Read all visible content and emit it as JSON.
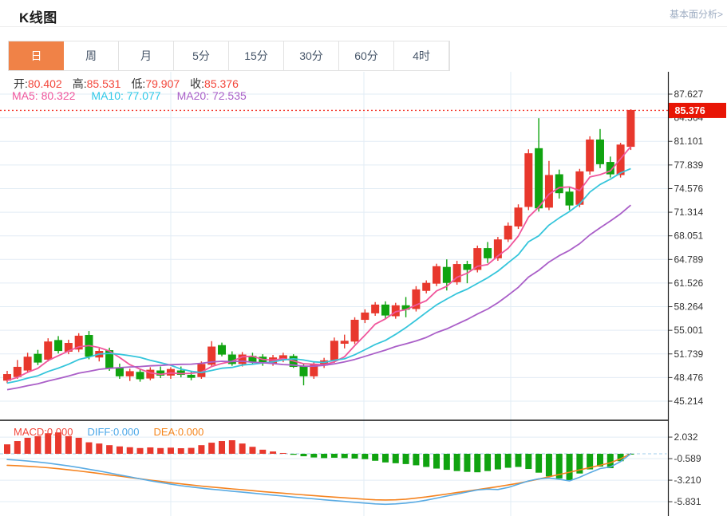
{
  "header": {
    "title": "K线图",
    "link_label": "基本面分析>"
  },
  "tabs": {
    "selected_index": 0,
    "accent_color": "#f08247",
    "items": [
      {
        "label": "日",
        "name": "day"
      },
      {
        "label": "周",
        "name": "week"
      },
      {
        "label": "月",
        "name": "month"
      },
      {
        "label": "5分",
        "name": "5min"
      },
      {
        "label": "15分",
        "name": "15min"
      },
      {
        "label": "30分",
        "name": "30min"
      },
      {
        "label": "60分",
        "name": "60min"
      },
      {
        "label": "4时",
        "name": "4hour"
      }
    ]
  },
  "legend": {
    "ohlc_value_color": "#f3463a",
    "ohlc": [
      {
        "label": "开:",
        "value": "80.402"
      },
      {
        "label": "高:",
        "value": "85.531"
      },
      {
        "label": "低:",
        "value": "79.907"
      },
      {
        "label": "收:",
        "value": "85.376"
      }
    ],
    "ma": [
      {
        "label": "MA5:",
        "value": "80.322",
        "color": "#f0569c"
      },
      {
        "label": "MA10:",
        "value": "77.077",
        "color": "#2fc9e8"
      },
      {
        "label": "MA20:",
        "value": "72.535",
        "color": "#aa5fc8"
      }
    ]
  },
  "macd_legend": {
    "items": [
      {
        "label": "MACD:",
        "value": "0.000",
        "color": "#f3463a"
      },
      {
        "label": "DIFF:",
        "value": "0.000",
        "color": "#4aa7e8"
      },
      {
        "label": "DEA:",
        "value": "0.000",
        "color": "#f5861d"
      }
    ]
  },
  "price_badge": {
    "value": "85.376"
  },
  "chart_data": {
    "type": "candlestick",
    "title": "K线图",
    "legend_position": "top-left inside plot",
    "grid": true,
    "price_axis": {
      "side": "right",
      "range": [
        45.214,
        87.627
      ],
      "ticks": [
        "87.627",
        "84.364",
        "81.101",
        "77.839",
        "74.576",
        "71.314",
        "68.051",
        "64.789",
        "61.526",
        "58.264",
        "55.001",
        "51.739",
        "48.476",
        "45.214"
      ]
    },
    "macd_axis": {
      "side": "right",
      "ticks": [
        "2.032",
        "-0.589",
        "-3.210",
        "-5.831"
      ]
    },
    "last_price": 85.376,
    "ohlc_current": {
      "open": 80.402,
      "high": 85.531,
      "low": 79.907,
      "close": 85.376
    },
    "ma_values_current": {
      "MA5": 80.322,
      "MA10": 77.077,
      "MA20": 72.535
    },
    "macd_values_current": {
      "MACD": 0.0,
      "DIFF": 0.0,
      "DEA": 0.0
    },
    "ma_periods": [
      5,
      10,
      20
    ],
    "ma_seed_closes": [
      44.8,
      45.0,
      45.2,
      45.4,
      45.6,
      45.8,
      46.0,
      46.2,
      46.4,
      46.6,
      46.8,
      47.0,
      47.2,
      47.4,
      47.5,
      47.6,
      47.7,
      47.8,
      47.9,
      48.0
    ],
    "candles_ohlc": [
      [
        48.1,
        49.4,
        47.7,
        48.9
      ],
      [
        48.6,
        50.9,
        48.3,
        49.9
      ],
      [
        49.5,
        51.9,
        49.1,
        51.3
      ],
      [
        51.7,
        52.3,
        50.2,
        50.6
      ],
      [
        51.0,
        53.9,
        50.7,
        53.4
      ],
      [
        53.6,
        54.2,
        51.8,
        52.2
      ],
      [
        52.1,
        53.7,
        51.7,
        53.2
      ],
      [
        52.4,
        54.6,
        52.0,
        54.2
      ],
      [
        54.3,
        54.9,
        51.0,
        51.4
      ],
      [
        51.3,
        52.5,
        50.7,
        52.1
      ],
      [
        52.2,
        52.6,
        49.4,
        49.8
      ],
      [
        49.8,
        50.4,
        48.3,
        48.7
      ],
      [
        48.7,
        49.7,
        48.0,
        49.3
      ],
      [
        49.2,
        49.6,
        47.9,
        48.3
      ],
      [
        48.4,
        49.9,
        48.1,
        49.5
      ],
      [
        49.4,
        50.0,
        48.4,
        48.8
      ],
      [
        48.8,
        49.9,
        48.3,
        49.6
      ],
      [
        49.4,
        50.0,
        48.5,
        48.9
      ],
      [
        48.8,
        49.4,
        48.1,
        48.5
      ],
      [
        48.6,
        50.7,
        48.3,
        50.3
      ],
      [
        50.3,
        53.5,
        50.0,
        52.7
      ],
      [
        52.9,
        53.3,
        51.4,
        51.7
      ],
      [
        51.6,
        52.1,
        50.1,
        50.4
      ],
      [
        50.4,
        52.0,
        50.0,
        51.6
      ],
      [
        51.4,
        51.9,
        50.3,
        50.7
      ],
      [
        51.3,
        51.7,
        50.1,
        50.5
      ],
      [
        50.5,
        51.6,
        50.1,
        51.2
      ],
      [
        51.0,
        51.9,
        50.6,
        51.5
      ],
      [
        51.4,
        51.7,
        49.8,
        50.0
      ],
      [
        50.0,
        50.4,
        47.4,
        48.7
      ],
      [
        48.7,
        50.6,
        48.3,
        50.2
      ],
      [
        50.2,
        51.2,
        49.8,
        50.8
      ],
      [
        50.9,
        54.0,
        50.5,
        53.5
      ],
      [
        53.2,
        54.4,
        52.5,
        53.5
      ],
      [
        53.5,
        56.8,
        53.1,
        56.4
      ],
      [
        56.5,
        57.9,
        56.0,
        57.4
      ],
      [
        57.4,
        58.9,
        57.0,
        58.5
      ],
      [
        58.5,
        59.0,
        56.6,
        57.1
      ],
      [
        57.0,
        58.8,
        56.6,
        58.4
      ],
      [
        58.4,
        59.6,
        56.8,
        57.9
      ],
      [
        58.0,
        61.1,
        57.6,
        60.6
      ],
      [
        60.5,
        61.9,
        60.1,
        61.5
      ],
      [
        61.5,
        64.2,
        61.1,
        63.8
      ],
      [
        63.7,
        64.8,
        60.5,
        61.6
      ],
      [
        61.7,
        64.6,
        61.3,
        64.1
      ],
      [
        64.1,
        64.6,
        61.5,
        63.4
      ],
      [
        63.4,
        66.7,
        63.0,
        66.3
      ],
      [
        66.3,
        67.2,
        64.3,
        65.0
      ],
      [
        65.0,
        67.9,
        64.6,
        67.5
      ],
      [
        67.6,
        69.9,
        67.2,
        69.4
      ],
      [
        69.4,
        72.4,
        69.0,
        71.9
      ],
      [
        72.1,
        80.0,
        71.6,
        79.4
      ],
      [
        80.1,
        84.3,
        71.4,
        71.9
      ],
      [
        72.0,
        78.4,
        71.6,
        76.4
      ],
      [
        76.5,
        77.2,
        73.2,
        74.0
      ],
      [
        74.1,
        74.8,
        71.6,
        72.3
      ],
      [
        72.4,
        77.3,
        72.0,
        76.9
      ],
      [
        77.0,
        81.8,
        76.5,
        81.3
      ],
      [
        81.3,
        82.8,
        77.4,
        78.0
      ],
      [
        78.2,
        79.0,
        76.1,
        76.6
      ],
      [
        76.5,
        80.9,
        76.1,
        80.6
      ],
      [
        80.402,
        85.531,
        79.907,
        85.376
      ]
    ],
    "macd_hist": [
      1.15,
      1.55,
      1.95,
      2.15,
      2.5,
      2.6,
      2.15,
      1.95,
      1.4,
      1.25,
      1.05,
      0.9,
      0.8,
      0.7,
      0.78,
      0.7,
      0.75,
      0.68,
      0.72,
      1.05,
      1.35,
      1.55,
      1.65,
      1.25,
      0.85,
      0.5,
      0.28,
      0.1,
      -0.12,
      -0.3,
      -0.45,
      -0.52,
      -0.48,
      -0.52,
      -0.58,
      -0.65,
      -0.85,
      -1.05,
      -1.15,
      -1.25,
      -1.4,
      -1.6,
      -1.8,
      -1.95,
      -2.1,
      -2.2,
      -2.25,
      -2.1,
      -1.9,
      -1.7,
      -1.6,
      -1.85,
      -2.3,
      -2.75,
      -3.0,
      -3.2,
      -2.4,
      -1.9,
      -1.55,
      -1.75,
      -0.9,
      -0.05
    ],
    "diff_line": [
      -0.7,
      -0.78,
      -0.88,
      -1.0,
      -1.14,
      -1.3,
      -1.48,
      -1.67,
      -1.88,
      -2.1,
      -2.33,
      -2.57,
      -2.81,
      -3.05,
      -3.28,
      -3.5,
      -3.7,
      -3.88,
      -4.04,
      -4.18,
      -4.31,
      -4.43,
      -4.55,
      -4.67,
      -4.79,
      -4.91,
      -5.03,
      -5.15,
      -5.27,
      -5.38,
      -5.49,
      -5.6,
      -5.7,
      -5.8,
      -5.9,
      -6.0,
      -6.1,
      -6.15,
      -6.1,
      -6.0,
      -5.85,
      -5.65,
      -5.4,
      -5.15,
      -4.9,
      -4.65,
      -4.4,
      -4.3,
      -4.35,
      -4.1,
      -3.7,
      -3.3,
      -3.05,
      -2.95,
      -3.1,
      -3.3,
      -2.85,
      -2.3,
      -1.8,
      -1.6,
      -0.95,
      0.0
    ],
    "dea_line": [
      -1.4,
      -1.45,
      -1.52,
      -1.6,
      -1.7,
      -1.82,
      -1.95,
      -2.09,
      -2.24,
      -2.4,
      -2.56,
      -2.72,
      -2.88,
      -3.04,
      -3.2,
      -3.36,
      -3.51,
      -3.66,
      -3.8,
      -3.93,
      -4.05,
      -4.16,
      -4.27,
      -4.38,
      -4.49,
      -4.6,
      -4.7,
      -4.8,
      -4.9,
      -5.0,
      -5.09,
      -5.18,
      -5.27,
      -5.36,
      -5.45,
      -5.53,
      -5.6,
      -5.62,
      -5.6,
      -5.52,
      -5.4,
      -5.25,
      -5.08,
      -4.9,
      -4.72,
      -4.54,
      -4.36,
      -4.18,
      -4.0,
      -3.8,
      -3.58,
      -3.34,
      -3.08,
      -2.8,
      -2.52,
      -2.24,
      -1.96,
      -1.68,
      -1.4,
      -1.1,
      -0.6,
      0.0
    ],
    "colors": {
      "up": "#e8382d",
      "down": "#10a310",
      "ma5": "#f0569c",
      "ma10": "#35c5db",
      "ma20": "#aa5fc8",
      "diff": "#5aabe3",
      "dea": "#f5831f",
      "grid": "#e2ecf5",
      "axis_line": "#222222",
      "axis_text": "#333333",
      "price_line": "#f5372b",
      "zero_line": "#9fcdeb",
      "badge_bg": "#e81505",
      "badge_text": "#ffffff"
    }
  }
}
